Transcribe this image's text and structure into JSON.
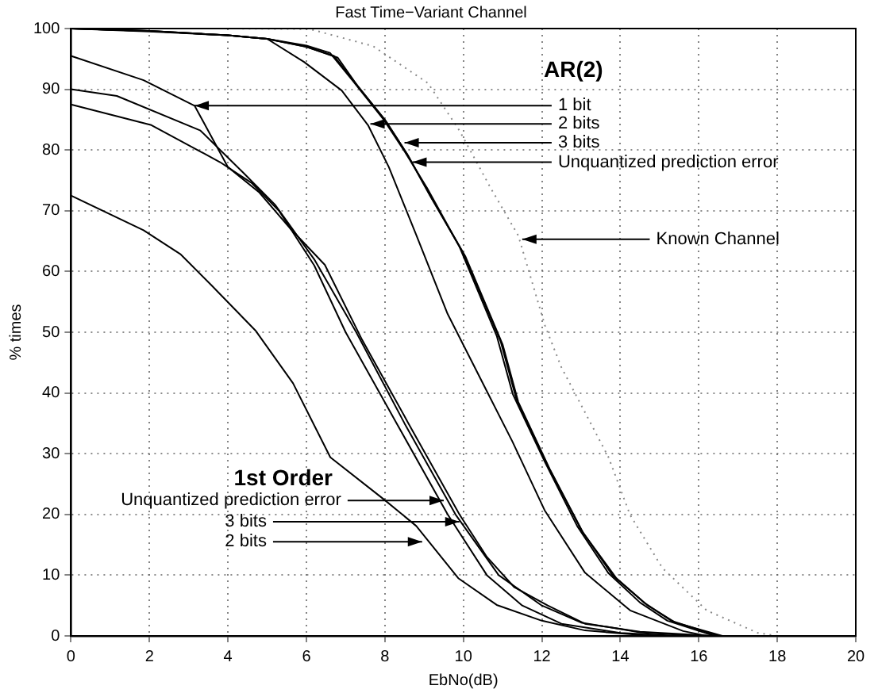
{
  "chart_data": {
    "type": "line",
    "title": "Fast Time−Variant Channel",
    "xlabel": "EbNo(dB)",
    "ylabel": "% times",
    "xlim": [
      0,
      20
    ],
    "xticks": [
      0,
      2,
      4,
      6,
      8,
      10,
      12,
      14,
      16,
      18,
      20
    ],
    "ylim": [
      0,
      100
    ],
    "yticks": [
      0,
      10,
      20,
      30,
      40,
      50,
      60,
      70,
      80,
      90,
      100
    ],
    "grid": true,
    "legend": false,
    "marker": "none",
    "series": [
      {
        "color": "#000000",
        "x": [
          0,
          1.85,
          3.15,
          4.0,
          4.8,
          5.6,
          6.47,
          7.4,
          8.6,
          9.9,
          10.6,
          11.3,
          12.15,
          13.1,
          14.5,
          16.4
        ],
        "values": [
          95.5,
          91.5,
          87.3,
          77.2,
          73,
          67,
          61.1,
          49,
          35,
          20,
          13,
          8,
          5,
          2,
          0.7,
          0
        ]
      },
      {
        "color": "#000000",
        "x": [
          0,
          1.17,
          3.3,
          4.4,
          5.2,
          6.2,
          7.27,
          8.5,
          9.8,
          10.9,
          12.0,
          13.0,
          14.5,
          16.0
        ],
        "values": [
          90,
          88.9,
          83.2,
          76.2,
          71,
          62,
          50,
          35,
          20,
          10,
          5,
          2.2,
          0.6,
          0
        ]
      },
      {
        "color": "#000000",
        "x": [
          0,
          2.05,
          3.8,
          4.6,
          5.3,
          6.2,
          7.0,
          8.3,
          9.6,
          10.6,
          11.5,
          12.5,
          14,
          15.5
        ],
        "values": [
          87.5,
          84.1,
          78,
          74.6,
          70,
          61,
          50,
          35,
          20,
          10,
          5,
          2,
          0.5,
          0
        ]
      },
      {
        "color": "#000000",
        "x": [
          0,
          1.85,
          2.8,
          3.6,
          4.7,
          5.66,
          6.61,
          7.97,
          8.8,
          9.87,
          10.85,
          12,
          13.1,
          14.8
        ],
        "values": [
          72.5,
          66.8,
          62.8,
          57.6,
          50.3,
          41.6,
          29.4,
          22.5,
          18.1,
          9.5,
          5.1,
          2.5,
          0.9,
          0
        ]
      },
      {
        "color": "#000000",
        "x": [
          0,
          2,
          4,
          5,
          5.94,
          6.9,
          7.57,
          8.1,
          8.8,
          9.6,
          10.7,
          11.25,
          12.07,
          13.1,
          14.25,
          15.6,
          16.2
        ],
        "values": [
          100,
          99.5,
          98.9,
          98.3,
          94.5,
          89.8,
          84.1,
          77.2,
          66,
          53,
          39,
          32,
          20.7,
          10.4,
          4.2,
          0.8,
          0
        ]
      },
      {
        "color": "#000000",
        "x": [
          0,
          2,
          4,
          5,
          6,
          6.6,
          7.17,
          7.97,
          8.5,
          9.08,
          9.9,
          10.85,
          11.26,
          12.08,
          12.9,
          13.7,
          14.5,
          15.2,
          16.4
        ],
        "values": [
          100,
          99.6,
          98.9,
          98.3,
          97.2,
          96,
          91.5,
          85,
          79.8,
          73.7,
          64.1,
          49.4,
          39.8,
          28.6,
          18.1,
          10.3,
          5.5,
          2.5,
          0
        ]
      },
      {
        "color": "#000000",
        "x": [
          0,
          2,
          4,
          5,
          6,
          6.7,
          7.25,
          8.0,
          8.55,
          9.15,
          10.0,
          10.95,
          11.35,
          12.15,
          13.0,
          13.8,
          14.6,
          15.3,
          16.5
        ],
        "values": [
          100,
          99.6,
          98.9,
          98.3,
          97.0,
          95.5,
          91.0,
          85,
          79.5,
          72.5,
          63,
          48.5,
          39,
          28,
          17.5,
          10,
          5.5,
          2.5,
          0
        ]
      },
      {
        "color": "#000000",
        "x": [
          0,
          2,
          4,
          5,
          6,
          6.8,
          7.3,
          8.05,
          8.6,
          9.2,
          10.05,
          11.0,
          11.4,
          12.2,
          13.05,
          13.9,
          14.7,
          15.4,
          16.6
        ],
        "values": [
          100,
          99.6,
          98.9,
          98.3,
          97.0,
          95.2,
          90.6,
          84.5,
          79,
          72,
          62.5,
          48,
          38.5,
          27.5,
          17,
          9.5,
          5,
          2.2,
          0
        ]
      },
      {
        "color": "#888888",
        "line_style": "dotted",
        "x": [
          0,
          4,
          6.1,
          7.7,
          9.1,
          9.9,
          10.7,
          11.4,
          12.08,
          12.5,
          13.7,
          14.25,
          15.07,
          16.2,
          17.5,
          18
        ],
        "values": [
          100,
          100,
          99.9,
          97.1,
          91,
          83.2,
          73.7,
          65.9,
          51.1,
          44.2,
          29.4,
          19.9,
          11.2,
          4.2,
          0.5,
          0
        ]
      }
    ],
    "annotations": [
      "AR(2)",
      {
        "text": "1 bit",
        "x": 3.15,
        "y": 87.3
      },
      {
        "text": "2 bits",
        "x": 7.63,
        "y": 84.3
      },
      {
        "text": "3 bits",
        "x": 8.5,
        "y": 81.2
      },
      {
        "text": "Unquantized prediction error",
        "x": 8.7,
        "y": 78
      },
      {
        "text": "Known Channel",
        "x": 11.5,
        "y": 65.3
      },
      "1st Order",
      {
        "text": "Unquantized prediction error",
        "x": 9.5,
        "y": 22.3
      },
      {
        "text": "3 bits",
        "x": 9.9,
        "y": 18.8
      },
      {
        "text": "2 bits",
        "x": 8.95,
        "y": 15.5
      }
    ]
  }
}
